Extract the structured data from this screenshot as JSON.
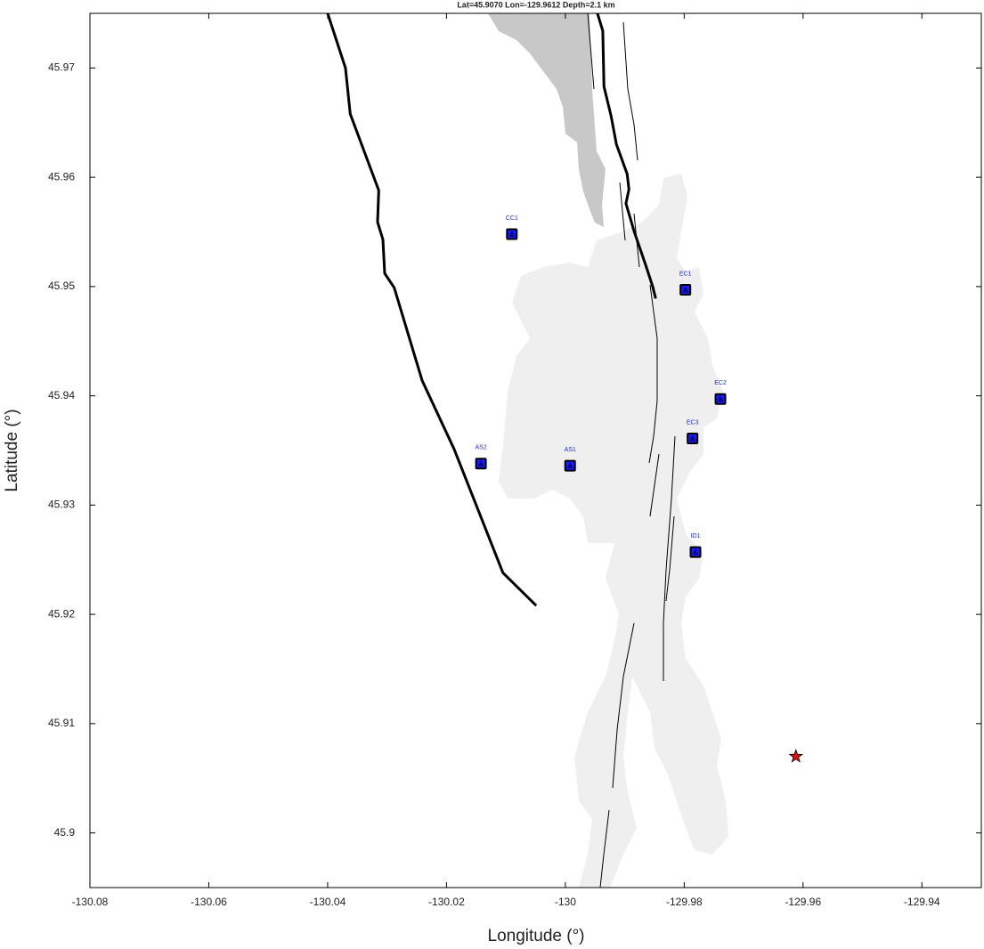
{
  "chart_data": {
    "type": "map",
    "title": "Lat=45.9070  Lon=-129.9612  Depth=2.1 km",
    "xlabel": "Longitude (°)",
    "ylabel": "Latitude (°)",
    "xlim": [
      -130.08,
      -129.93
    ],
    "ylim": [
      45.895,
      45.975
    ],
    "xticks": [
      -130.08,
      -130.06,
      -130.04,
      -130.02,
      -130,
      -129.98,
      -129.96,
      -129.94
    ],
    "yticks": [
      45.9,
      45.91,
      45.92,
      45.93,
      45.94,
      45.95,
      45.96,
      45.97
    ],
    "lines": [
      {
        "color": "#000000",
        "x": [
          -130.04,
          -130.037,
          -130.0362,
          -130.0314,
          -130.0316,
          -130.0307,
          -130.0304,
          -130.0288,
          -130.0241,
          -130.0187,
          -130.0105,
          -130.0049
        ],
        "y": [
          45.975,
          45.97,
          45.9658,
          45.9588,
          45.9559,
          45.9543,
          45.9512,
          45.9499,
          45.9414,
          45.9351,
          45.9238,
          45.9208
        ]
      },
      {
        "color": "#000000",
        "x": [
          -129.9946,
          -129.9937,
          -129.9935,
          -129.9923,
          -129.9914,
          -129.9896,
          -129.9893,
          -129.9898,
          -129.9884,
          -129.9865,
          -129.9853,
          -129.9848
        ],
        "y": [
          45.975,
          45.9734,
          45.9683,
          45.9656,
          45.963,
          45.9603,
          45.9589,
          45.9576,
          45.955,
          45.952,
          45.95,
          45.9489
        ]
      }
    ],
    "stations": {
      "color": "#1a1aff",
      "labels": [
        "CC1",
        "EC1",
        "EC2",
        "EC3",
        "AS2",
        "AS1",
        "ID1"
      ],
      "x": [
        -130.009,
        -129.9798,
        -129.9739,
        -129.9786,
        -130.0142,
        -129.9992,
        -129.9781
      ],
      "y": [
        45.9548,
        45.9497,
        45.9397,
        45.9361,
        45.9338,
        45.9336,
        45.9257
      ]
    },
    "event": {
      "color": "#e01010",
      "x": -129.9612,
      "y": 45.907
    }
  }
}
